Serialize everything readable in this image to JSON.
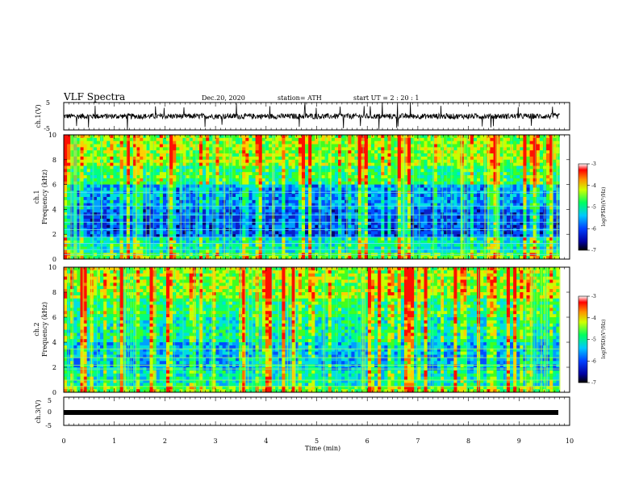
{
  "header": {
    "title": "VLF Spectra",
    "date": "Dec.20, 2020",
    "station": "station= ATH",
    "start": "start  UT =   2 : 20 : 1"
  },
  "chart_data": [
    {
      "type": "line",
      "name": "channel-1-waveform",
      "ylabel": "ch.1(V)",
      "ylim": [
        -5,
        5
      ],
      "yticks": [
        "5",
        "-5"
      ],
      "xlim": [
        0,
        10
      ],
      "description_values": {
        "baseline": 0,
        "typical_amplitude": 1,
        "spike_amplitude": 5
      }
    },
    {
      "type": "heatmap",
      "name": "channel-1-spectrogram",
      "ylabel_line1": "ch.1",
      "ylabel_line2": "Frequency (kHz)",
      "ylim": [
        0,
        10
      ],
      "yticks": [
        "0",
        "2",
        "4",
        "6",
        "8",
        "10"
      ],
      "xlim": [
        0,
        9.8
      ],
      "colorbar": {
        "label": "log(PSD)(V²/Hz)",
        "range": [
          -7,
          -3
        ],
        "ticks": [
          "-3",
          "-4",
          "-5",
          "-6",
          "-7"
        ]
      }
    },
    {
      "type": "heatmap",
      "name": "channel-2-spectrogram",
      "ylabel_line1": "ch.2",
      "ylabel_line2": "Frequency (kHz)",
      "ylim": [
        0,
        10
      ],
      "yticks": [
        "0",
        "2",
        "4",
        "6",
        "8",
        "10"
      ],
      "xlim": [
        0,
        9.8
      ],
      "colorbar": {
        "label": "log(PSD)(V²/Hz)",
        "range": [
          -7,
          -3
        ],
        "ticks": [
          "-3",
          "-4",
          "-5",
          "-6",
          "-7"
        ]
      }
    },
    {
      "type": "line",
      "name": "channel-3-waveform",
      "ylabel": "ch.3(V)",
      "ylim": [
        -5,
        5
      ],
      "yticks": [
        "5",
        "0",
        "-5"
      ],
      "xlim": [
        0,
        10
      ],
      "description_values": {
        "baseline": 0
      }
    }
  ],
  "xaxis": {
    "label": "Time  (min)",
    "ticks": [
      "0",
      "1",
      "2",
      "3",
      "4",
      "5",
      "6",
      "7",
      "8",
      "9",
      "10"
    ],
    "range": [
      0,
      10
    ]
  }
}
